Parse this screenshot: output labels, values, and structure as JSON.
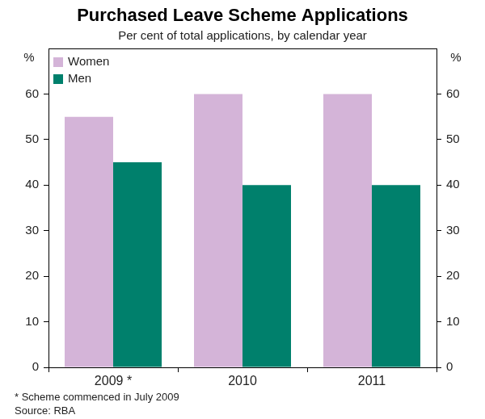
{
  "chart_data": {
    "type": "bar",
    "title": "Purchased Leave Scheme Applications",
    "subtitle": "Per cent of total applications, by calendar year",
    "ylabel": "%",
    "categories": [
      "2009 *",
      "2010",
      "2011"
    ],
    "series": [
      {
        "name": "Women",
        "color": "#d4b4d8",
        "values": [
          55,
          60,
          60
        ]
      },
      {
        "name": "Men",
        "color": "#00806c",
        "values": [
          45,
          40,
          40
        ]
      }
    ],
    "ylim": [
      0,
      70
    ],
    "yticks": [
      0,
      10,
      20,
      30,
      40,
      50,
      60
    ],
    "y2lim": [
      0,
      70
    ],
    "y2ticks": [
      0,
      10,
      20,
      30,
      40,
      50,
      60
    ],
    "grid": false,
    "legend": "top-left",
    "notes": [
      "* Scheme commenced in July 2009",
      "Source: RBA"
    ]
  }
}
